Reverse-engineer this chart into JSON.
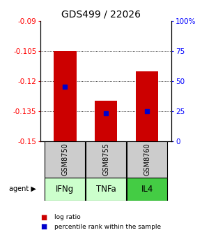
{
  "title": "GDS499 / 22026",
  "samples": [
    "GSM8750",
    "GSM8755",
    "GSM8760"
  ],
  "agents": [
    "IFNg",
    "TNFa",
    "IL4"
  ],
  "bar_tops": [
    -0.105,
    -0.13,
    -0.115
  ],
  "bar_bottom": -0.15,
  "percentile_values": [
    -0.123,
    -0.136,
    -0.135
  ],
  "ylim": [
    -0.15,
    -0.09
  ],
  "yticks": [
    -0.15,
    -0.135,
    -0.12,
    -0.105,
    -0.09
  ],
  "ytick_labels": [
    "-0.15",
    "-0.135",
    "-0.12",
    "-0.105",
    "-0.09"
  ],
  "right_ytick_pcts": [
    0,
    25,
    50,
    75,
    100
  ],
  "right_ytick_labels": [
    "0",
    "25",
    "50",
    "75",
    "100%"
  ],
  "grid_lines": [
    -0.105,
    -0.12,
    -0.135
  ],
  "bar_color": "#cc0000",
  "percentile_color": "#0000cc",
  "agent_bg_colors": [
    "#ccffcc",
    "#ccffcc",
    "#44cc44"
  ],
  "sample_bg_color": "#cccccc",
  "bar_width": 0.55,
  "title_fontsize": 10,
  "tick_fontsize": 7.5,
  "agent_fontsize": 8.5,
  "sample_fontsize": 7
}
